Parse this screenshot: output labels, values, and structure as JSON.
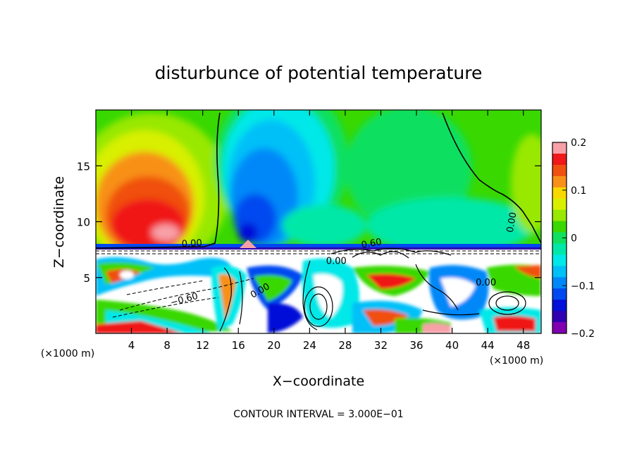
{
  "chart_data": {
    "type": "heatmap",
    "title": "disturbunce of potential temperature",
    "xlabel": "X−coordinate",
    "ylabel": "Z−coordinate",
    "x_unit_left": "(×1000 m)",
    "x_unit_right": "(×1000 m)",
    "footer": "CONTOUR INTERVAL = 3.000E−01",
    "xlim": [
      0,
      50
    ],
    "ylim": [
      0,
      20
    ],
    "x_ticks": [
      4,
      8,
      12,
      16,
      20,
      24,
      28,
      32,
      36,
      40,
      44,
      48
    ],
    "y_ticks": [
      5,
      10,
      15
    ],
    "colorbar": {
      "range": [
        -0.2,
        0.2
      ],
      "tick_values": [
        0.2,
        0.1,
        0,
        -0.1,
        -0.2
      ],
      "tick_labels": [
        "0.2",
        "0.1",
        "0",
        "−0.1",
        "−0.2"
      ],
      "colors": [
        "#f8a0a8",
        "#f01818",
        "#f05010",
        "#f89018",
        "#f8d800",
        "#d8f000",
        "#98e800",
        "#38d800",
        "#10e060",
        "#00e8a8",
        "#00e8e8",
        "#00c0f8",
        "#0088f8",
        "#0048f0",
        "#0010d8",
        "#3000b0",
        "#8000b0"
      ]
    },
    "contour_labels": [
      {
        "text": "0.00",
        "x": 10.8,
        "z": 7.8,
        "rot": -3
      },
      {
        "text": "−0.60",
        "x": 10.0,
        "z": 2.8,
        "rot": -15
      },
      {
        "text": "0.00",
        "x": 18.6,
        "z": 3.6,
        "rot": -30
      },
      {
        "text": "0.00",
        "x": 27.0,
        "z": 6.2,
        "rot": 0
      },
      {
        "text": "0.60",
        "x": 31.0,
        "z": 7.8,
        "rot": -10
      },
      {
        "text": "0.00",
        "x": 43.8,
        "z": 4.3,
        "rot": 0
      },
      {
        "text": "0.00",
        "x": 47.0,
        "z": 9.9,
        "rot": -80
      }
    ]
  }
}
